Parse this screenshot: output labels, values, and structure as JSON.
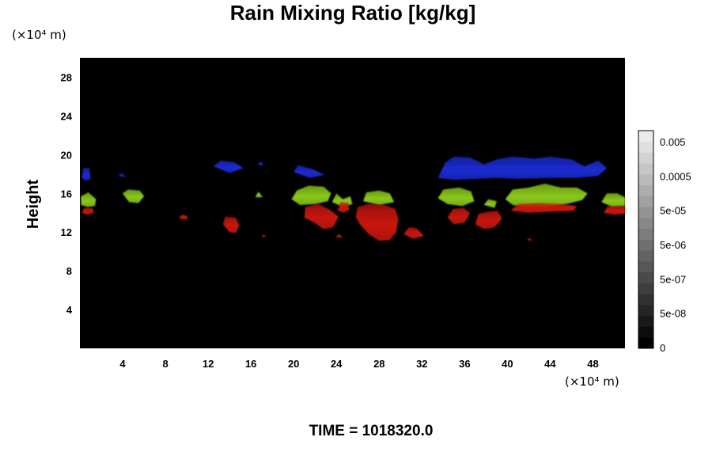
{
  "chart_data": {
    "type": "heatmap",
    "title": "Rain Mixing Ratio [kg/kg]",
    "ylabel": "Height",
    "x_unit_label": "(×10⁴ m)",
    "y_unit_label": "(×10⁴ m)",
    "footer": "TIME = 1018320.0",
    "xlim": [
      0,
      51
    ],
    "ylim": [
      0,
      30
    ],
    "x_ticks": [
      4,
      8,
      12,
      16,
      20,
      24,
      28,
      32,
      36,
      40,
      44,
      48
    ],
    "y_ticks": [
      4,
      8,
      12,
      16,
      20,
      24,
      28
    ],
    "colorbar": {
      "labels": [
        "0.005",
        "0.0005",
        "5e-05",
        "5e-06",
        "5e-07",
        "5e-08",
        "0"
      ],
      "levels": 20
    },
    "background_color": "#000000",
    "colors": {
      "blue": "#1a2ad0",
      "green": "#8ac81a",
      "red": "#c8140f"
    },
    "regions": [
      {
        "color": "blue",
        "points": [
          [
            0.2,
            17.6
          ],
          [
            0.3,
            18.6
          ],
          [
            0.9,
            18.6
          ],
          [
            1.0,
            17.5
          ],
          [
            0.5,
            17.3
          ]
        ]
      },
      {
        "color": "blue",
        "points": [
          [
            3.6,
            17.8
          ],
          [
            3.9,
            18.1
          ],
          [
            4.3,
            17.7
          ]
        ]
      },
      {
        "color": "blue",
        "points": [
          [
            12.5,
            18.8
          ],
          [
            13.2,
            19.4
          ],
          [
            14.5,
            19.2
          ],
          [
            15.3,
            18.6
          ],
          [
            14.0,
            18.1
          ]
        ]
      },
      {
        "color": "blue",
        "points": [
          [
            16.6,
            18.9
          ],
          [
            16.9,
            19.3
          ],
          [
            17.2,
            18.9
          ]
        ]
      },
      {
        "color": "blue",
        "points": [
          [
            20.0,
            18.2
          ],
          [
            20.4,
            18.9
          ],
          [
            21.8,
            18.5
          ],
          [
            22.9,
            17.9
          ],
          [
            21.5,
            17.6
          ]
        ]
      },
      {
        "color": "blue",
        "points": [
          [
            33.5,
            17.6
          ],
          [
            34.2,
            19.2
          ],
          [
            35.0,
            19.8
          ],
          [
            36.5,
            19.7
          ],
          [
            37.8,
            19.0
          ],
          [
            39.0,
            19.5
          ],
          [
            40.5,
            19.8
          ],
          [
            42.5,
            19.6
          ],
          [
            44.0,
            19.8
          ],
          [
            46.0,
            19.5
          ],
          [
            47.2,
            18.8
          ],
          [
            48.5,
            19.4
          ],
          [
            49.3,
            18.6
          ],
          [
            48.5,
            17.8
          ],
          [
            46.5,
            17.6
          ],
          [
            44.0,
            17.6
          ],
          [
            41.0,
            17.5
          ],
          [
            39.0,
            17.6
          ],
          [
            37.0,
            17.5
          ],
          [
            35.0,
            17.4
          ]
        ]
      },
      {
        "color": "green",
        "points": [
          [
            0.1,
            14.8
          ],
          [
            0.1,
            15.7
          ],
          [
            0.8,
            16.1
          ],
          [
            1.5,
            15.4
          ],
          [
            1.4,
            14.7
          ],
          [
            0.7,
            14.6
          ]
        ]
      },
      {
        "color": "green",
        "points": [
          [
            4.0,
            16.0
          ],
          [
            4.5,
            16.4
          ],
          [
            5.6,
            16.3
          ],
          [
            6.0,
            15.7
          ],
          [
            5.5,
            15.0
          ],
          [
            4.6,
            15.1
          ]
        ]
      },
      {
        "color": "green",
        "points": [
          [
            16.4,
            15.6
          ],
          [
            16.7,
            16.2
          ],
          [
            17.1,
            15.6
          ]
        ]
      },
      {
        "color": "green",
        "points": [
          [
            19.8,
            15.4
          ],
          [
            20.3,
            16.3
          ],
          [
            21.4,
            16.8
          ],
          [
            22.8,
            16.7
          ],
          [
            23.5,
            16.0
          ],
          [
            23.2,
            15.2
          ],
          [
            22.0,
            14.9
          ],
          [
            20.6,
            14.8
          ]
        ]
      },
      {
        "color": "green",
        "points": [
          [
            23.6,
            15.1
          ],
          [
            24.0,
            16.0
          ],
          [
            24.6,
            15.4
          ],
          [
            25.3,
            15.7
          ],
          [
            25.5,
            14.9
          ],
          [
            24.6,
            14.6
          ]
        ]
      },
      {
        "color": "green",
        "points": [
          [
            26.5,
            15.2
          ],
          [
            26.8,
            16.1
          ],
          [
            28.0,
            16.3
          ],
          [
            29.0,
            16.0
          ],
          [
            29.4,
            15.1
          ],
          [
            28.0,
            14.8
          ]
        ]
      },
      {
        "color": "green",
        "points": [
          [
            33.5,
            15.5
          ],
          [
            34.0,
            16.4
          ],
          [
            35.5,
            16.6
          ],
          [
            36.6,
            16.2
          ],
          [
            36.9,
            15.2
          ],
          [
            35.8,
            14.7
          ],
          [
            34.4,
            14.9
          ]
        ]
      },
      {
        "color": "green",
        "points": [
          [
            37.8,
            14.8
          ],
          [
            38.2,
            15.4
          ],
          [
            39.0,
            15.2
          ],
          [
            38.8,
            14.5
          ]
        ]
      },
      {
        "color": "green",
        "points": [
          [
            39.8,
            15.4
          ],
          [
            40.5,
            16.4
          ],
          [
            42.0,
            16.6
          ],
          [
            43.5,
            17.0
          ],
          [
            45.0,
            16.6
          ],
          [
            46.5,
            16.6
          ],
          [
            47.5,
            16.0
          ],
          [
            47.0,
            15.3
          ],
          [
            45.5,
            14.9
          ],
          [
            43.5,
            14.6
          ],
          [
            41.5,
            14.6
          ],
          [
            40.5,
            14.8
          ]
        ]
      },
      {
        "color": "green",
        "points": [
          [
            48.8,
            15.1
          ],
          [
            49.3,
            16.0
          ],
          [
            50.3,
            16.0
          ],
          [
            51.0,
            15.6
          ],
          [
            51.0,
            14.7
          ],
          [
            49.8,
            14.6
          ]
        ]
      },
      {
        "color": "red",
        "points": [
          [
            0.2,
            14.0
          ],
          [
            0.4,
            14.5
          ],
          [
            1.2,
            14.5
          ],
          [
            1.3,
            14.0
          ],
          [
            0.7,
            13.8
          ]
        ]
      },
      {
        "color": "red",
        "points": [
          [
            9.3,
            13.4
          ],
          [
            9.5,
            13.8
          ],
          [
            10.0,
            13.7
          ],
          [
            10.1,
            13.3
          ]
        ]
      },
      {
        "color": "red",
        "points": [
          [
            13.4,
            12.8
          ],
          [
            13.6,
            13.6
          ],
          [
            14.6,
            13.5
          ],
          [
            14.9,
            12.7
          ],
          [
            14.6,
            11.9
          ],
          [
            14.0,
            12.0
          ]
        ]
      },
      {
        "color": "red",
        "points": [
          [
            17.0,
            11.5
          ],
          [
            17.2,
            11.8
          ],
          [
            17.4,
            11.5
          ]
        ]
      },
      {
        "color": "red",
        "points": [
          [
            21.0,
            13.5
          ],
          [
            21.1,
            14.6
          ],
          [
            22.3,
            14.9
          ],
          [
            23.4,
            14.3
          ],
          [
            24.2,
            13.6
          ],
          [
            23.7,
            12.5
          ],
          [
            22.8,
            12.3
          ],
          [
            21.9,
            13.0
          ]
        ]
      },
      {
        "color": "red",
        "points": [
          [
            23.9,
            11.5
          ],
          [
            24.3,
            11.8
          ],
          [
            24.6,
            11.4
          ]
        ]
      },
      {
        "color": "red",
        "points": [
          [
            24.1,
            14.2
          ],
          [
            24.4,
            15.1
          ],
          [
            25.1,
            15.0
          ],
          [
            25.2,
            14.3
          ],
          [
            24.7,
            14.0
          ]
        ]
      },
      {
        "color": "red",
        "points": [
          [
            25.8,
            13.6
          ],
          [
            26.0,
            14.6
          ],
          [
            27.0,
            14.9
          ],
          [
            28.5,
            14.8
          ],
          [
            29.5,
            14.4
          ],
          [
            29.8,
            13.4
          ],
          [
            29.6,
            12.0
          ],
          [
            29.0,
            11.2
          ],
          [
            28.0,
            11.1
          ],
          [
            27.0,
            11.8
          ],
          [
            26.2,
            12.8
          ]
        ]
      },
      {
        "color": "red",
        "points": [
          [
            30.3,
            11.8
          ],
          [
            30.8,
            12.5
          ],
          [
            31.5,
            12.4
          ],
          [
            32.2,
            11.6
          ],
          [
            31.2,
            11.3
          ]
        ]
      },
      {
        "color": "red",
        "points": [
          [
            34.4,
            13.5
          ],
          [
            34.9,
            14.4
          ],
          [
            35.9,
            14.5
          ],
          [
            36.5,
            14.0
          ],
          [
            36.0,
            13.0
          ],
          [
            35.0,
            12.8
          ]
        ]
      },
      {
        "color": "red",
        "points": [
          [
            37.0,
            12.8
          ],
          [
            37.3,
            13.9
          ],
          [
            38.2,
            14.1
          ],
          [
            39.1,
            14.2
          ],
          [
            39.5,
            13.4
          ],
          [
            38.8,
            12.5
          ],
          [
            37.8,
            12.3
          ]
        ]
      },
      {
        "color": "red",
        "points": [
          [
            40.3,
            14.2
          ],
          [
            41.0,
            14.9
          ],
          [
            43.0,
            15.0
          ],
          [
            45.0,
            14.9
          ],
          [
            46.5,
            14.7
          ],
          [
            46.2,
            14.2
          ],
          [
            44.0,
            14.1
          ],
          [
            42.0,
            14.0
          ]
        ]
      },
      {
        "color": "red",
        "points": [
          [
            41.8,
            11.2
          ],
          [
            42.1,
            11.4
          ],
          [
            42.3,
            11.1
          ]
        ]
      },
      {
        "color": "red",
        "points": [
          [
            49.0,
            14.0
          ],
          [
            49.4,
            14.7
          ],
          [
            51.0,
            14.7
          ],
          [
            51.0,
            13.9
          ],
          [
            50.0,
            13.8
          ]
        ]
      }
    ]
  }
}
